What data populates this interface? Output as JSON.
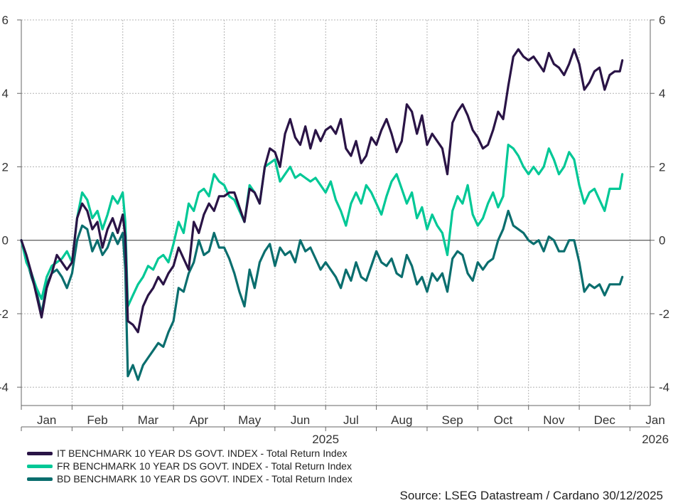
{
  "chart_data": {
    "type": "line",
    "title": "",
    "xlabel": "",
    "ylabel": "",
    "ylim": [
      -4.5,
      6
    ],
    "yticks": [
      -4,
      -2,
      0,
      2,
      4,
      6
    ],
    "ytick_labels": [
      "-4",
      "-2",
      "0",
      "2",
      "4",
      "6"
    ],
    "xlim": [
      0,
      12.4
    ],
    "month_labels": [
      "Jan",
      "Feb",
      "Mar",
      "Apr",
      "May",
      "Jun",
      "Jul",
      "Aug",
      "Sep",
      "Oct",
      "Nov",
      "Dec",
      "Jan"
    ],
    "year_labels": [
      {
        "label": "2025",
        "month": 6
      },
      {
        "label": "2026",
        "month": 12.5
      }
    ],
    "grid": true,
    "zero_line": true,
    "series": [
      {
        "name": "IT BENCHMARK 10 YEAR DS GOVT. INDEX - Total Return Index",
        "color": "#2a1446",
        "x": [
          0,
          0.1,
          0.2,
          0.3,
          0.4,
          0.5,
          0.6,
          0.7,
          0.8,
          0.9,
          1.0,
          1.1,
          1.2,
          1.3,
          1.4,
          1.5,
          1.6,
          1.7,
          1.8,
          1.9,
          2.0,
          2.05,
          2.1,
          2.2,
          2.3,
          2.4,
          2.5,
          2.6,
          2.7,
          2.8,
          2.9,
          3.0,
          3.1,
          3.2,
          3.3,
          3.4,
          3.5,
          3.6,
          3.7,
          3.8,
          3.9,
          4.0,
          4.1,
          4.2,
          4.3,
          4.4,
          4.5,
          4.6,
          4.7,
          4.8,
          4.9,
          5.0,
          5.1,
          5.2,
          5.3,
          5.4,
          5.5,
          5.6,
          5.7,
          5.8,
          5.9,
          6.0,
          6.1,
          6.2,
          6.3,
          6.4,
          6.5,
          6.6,
          6.7,
          6.8,
          6.9,
          7.0,
          7.1,
          7.2,
          7.3,
          7.4,
          7.5,
          7.6,
          7.7,
          7.8,
          7.9,
          8.0,
          8.1,
          8.2,
          8.3,
          8.4,
          8.5,
          8.6,
          8.7,
          8.8,
          8.9,
          9.0,
          9.1,
          9.2,
          9.3,
          9.4,
          9.5,
          9.6,
          9.7,
          9.8,
          9.9,
          10.0,
          10.1,
          10.2,
          10.3,
          10.4,
          10.5,
          10.6,
          10.7,
          10.8,
          10.9,
          11.0,
          11.1,
          11.2,
          11.3,
          11.4,
          11.5,
          11.6,
          11.7,
          11.8,
          11.85
        ],
        "values": [
          0,
          -0.4,
          -0.9,
          -1.5,
          -2.1,
          -1.3,
          -0.9,
          -0.4,
          -0.6,
          -0.8,
          -0.6,
          0.6,
          1.0,
          0.8,
          0.3,
          0.5,
          -0.2,
          0.3,
          0.6,
          0.2,
          0.7,
          0.1,
          -2.2,
          -2.3,
          -2.5,
          -1.8,
          -1.5,
          -1.3,
          -1.0,
          -1.2,
          -0.9,
          -0.7,
          -0.2,
          -0.5,
          -0.8,
          0.5,
          0.2,
          0.7,
          1.0,
          0.8,
          1.2,
          1.2,
          1.3,
          1.3,
          0.9,
          0.5,
          1.4,
          1.3,
          1.0,
          2.0,
          2.5,
          2.4,
          2.0,
          2.9,
          3.3,
          2.8,
          2.6,
          3.1,
          2.5,
          3.0,
          2.7,
          3.0,
          3.1,
          2.9,
          3.3,
          2.5,
          2.3,
          2.7,
          2.1,
          2.3,
          2.8,
          2.6,
          3.0,
          3.3,
          2.9,
          2.4,
          2.7,
          3.7,
          3.5,
          2.9,
          3.4,
          2.6,
          2.9,
          2.7,
          2.5,
          1.8,
          3.2,
          3.5,
          3.7,
          3.4,
          3.0,
          2.8,
          2.5,
          2.6,
          3.0,
          3.5,
          3.3,
          4.2,
          5.0,
          5.2,
          5.0,
          4.9,
          5.0,
          4.8,
          4.6,
          5.1,
          4.8,
          4.7,
          4.5,
          4.8,
          5.2,
          4.8,
          4.1,
          4.3,
          4.6,
          4.7,
          4.1,
          4.5,
          4.6,
          4.6,
          4.9
        ]
      },
      {
        "name": "FR BENCHMARK 10 YEAR DS GOVT. INDEX - Total Return Index",
        "color": "#00c896",
        "x": [
          0,
          0.1,
          0.2,
          0.3,
          0.4,
          0.5,
          0.6,
          0.7,
          0.8,
          0.9,
          1.0,
          1.1,
          1.2,
          1.3,
          1.4,
          1.5,
          1.6,
          1.7,
          1.8,
          1.9,
          2.0,
          2.05,
          2.1,
          2.2,
          2.3,
          2.4,
          2.5,
          2.6,
          2.7,
          2.8,
          2.9,
          3.0,
          3.1,
          3.2,
          3.3,
          3.4,
          3.5,
          3.6,
          3.7,
          3.8,
          3.9,
          4.0,
          4.1,
          4.2,
          4.3,
          4.4,
          4.5,
          4.6,
          4.7,
          4.8,
          4.9,
          5.0,
          5.1,
          5.2,
          5.3,
          5.4,
          5.5,
          5.6,
          5.7,
          5.8,
          5.9,
          6.0,
          6.1,
          6.2,
          6.3,
          6.4,
          6.5,
          6.6,
          6.7,
          6.8,
          6.9,
          7.0,
          7.1,
          7.2,
          7.3,
          7.4,
          7.5,
          7.6,
          7.7,
          7.8,
          7.9,
          8.0,
          8.1,
          8.2,
          8.3,
          8.4,
          8.5,
          8.6,
          8.7,
          8.8,
          8.9,
          9.0,
          9.1,
          9.2,
          9.3,
          9.4,
          9.5,
          9.6,
          9.7,
          9.8,
          9.9,
          10.0,
          10.1,
          10.2,
          10.3,
          10.4,
          10.5,
          10.6,
          10.7,
          10.8,
          10.9,
          11.0,
          11.1,
          11.2,
          11.3,
          11.4,
          11.5,
          11.6,
          11.7,
          11.8,
          11.85
        ],
        "values": [
          0,
          -0.6,
          -0.9,
          -1.3,
          -1.6,
          -1.0,
          -0.7,
          -0.6,
          -0.5,
          -0.3,
          -0.6,
          0.6,
          1.3,
          1.1,
          0.6,
          0.8,
          0.3,
          0.7,
          1.2,
          1.0,
          1.3,
          0.5,
          -1.8,
          -1.5,
          -1.2,
          -1.0,
          -0.7,
          -0.8,
          -0.5,
          -0.4,
          -0.6,
          -0.1,
          0.5,
          0.2,
          1.0,
          0.8,
          1.3,
          1.4,
          1.2,
          1.8,
          1.6,
          1.5,
          1.2,
          1.1,
          0.8,
          0.5,
          1.5,
          1.3,
          1.0,
          2.0,
          2.1,
          2.2,
          1.6,
          1.8,
          2.0,
          1.7,
          1.8,
          1.7,
          1.6,
          1.7,
          1.5,
          1.3,
          1.6,
          1.1,
          0.8,
          0.4,
          1.0,
          1.3,
          1.0,
          1.5,
          1.3,
          1.0,
          0.7,
          1.2,
          1.6,
          1.8,
          1.4,
          1.0,
          1.3,
          0.6,
          0.9,
          0.3,
          0.7,
          0.4,
          0.2,
          -0.4,
          0.8,
          1.2,
          1.0,
          1.5,
          0.7,
          0.4,
          0.6,
          1.0,
          1.3,
          0.9,
          1.2,
          2.6,
          2.5,
          2.3,
          2.0,
          1.8,
          2.0,
          1.8,
          2.0,
          2.5,
          2.2,
          1.8,
          2.0,
          2.4,
          2.2,
          1.5,
          1.0,
          1.3,
          1.4,
          1.1,
          0.8,
          1.4,
          1.4,
          1.4,
          1.8
        ]
      },
      {
        "name": "BD BENCHMARK 10 YEAR DS GOVT. INDEX - Total Return Index",
        "color": "#0a6e6e",
        "x": [
          0,
          0.1,
          0.2,
          0.3,
          0.4,
          0.5,
          0.6,
          0.7,
          0.8,
          0.9,
          1.0,
          1.1,
          1.2,
          1.3,
          1.4,
          1.5,
          1.6,
          1.7,
          1.8,
          1.9,
          2.0,
          2.05,
          2.1,
          2.2,
          2.3,
          2.4,
          2.5,
          2.6,
          2.7,
          2.8,
          2.9,
          3.0,
          3.1,
          3.2,
          3.3,
          3.4,
          3.5,
          3.6,
          3.7,
          3.8,
          3.9,
          4.0,
          4.1,
          4.2,
          4.3,
          4.4,
          4.5,
          4.6,
          4.7,
          4.8,
          4.9,
          5.0,
          5.1,
          5.2,
          5.3,
          5.4,
          5.5,
          5.6,
          5.7,
          5.8,
          5.9,
          6.0,
          6.1,
          6.2,
          6.3,
          6.4,
          6.5,
          6.6,
          6.7,
          6.8,
          6.9,
          7.0,
          7.1,
          7.2,
          7.3,
          7.4,
          7.5,
          7.6,
          7.7,
          7.8,
          7.9,
          8.0,
          8.1,
          8.2,
          8.3,
          8.4,
          8.5,
          8.6,
          8.7,
          8.8,
          8.9,
          9.0,
          9.1,
          9.2,
          9.3,
          9.4,
          9.5,
          9.6,
          9.7,
          9.8,
          9.9,
          10.0,
          10.1,
          10.2,
          10.3,
          10.4,
          10.5,
          10.6,
          10.7,
          10.8,
          10.9,
          11.0,
          11.1,
          11.2,
          11.3,
          11.4,
          11.5,
          11.6,
          11.7,
          11.8,
          11.85
        ],
        "values": [
          0,
          -0.5,
          -1.0,
          -1.4,
          -2.0,
          -1.2,
          -0.9,
          -0.8,
          -1.0,
          -1.3,
          -0.9,
          0.0,
          0.4,
          0.3,
          -0.3,
          0.0,
          -0.4,
          -0.2,
          0.2,
          -0.1,
          0.2,
          -0.8,
          -3.7,
          -3.4,
          -3.8,
          -3.4,
          -3.2,
          -3.0,
          -2.8,
          -2.9,
          -2.5,
          -2.2,
          -1.3,
          -1.4,
          -0.9,
          -0.6,
          0.0,
          -0.4,
          -0.3,
          0.2,
          -0.2,
          -0.2,
          -0.5,
          -0.9,
          -1.4,
          -1.8,
          -0.8,
          -1.3,
          -0.6,
          -0.3,
          -0.1,
          -0.7,
          -0.2,
          -0.4,
          -0.3,
          -0.6,
          0.0,
          -0.3,
          -0.2,
          -0.5,
          -0.8,
          -0.6,
          -0.8,
          -1.0,
          -1.3,
          -0.8,
          -1.1,
          -0.6,
          -1.0,
          -1.1,
          -0.7,
          -0.3,
          -0.6,
          -0.7,
          -0.5,
          -0.9,
          -1.0,
          -0.4,
          -0.7,
          -1.2,
          -1.0,
          -1.4,
          -0.9,
          -1.1,
          -0.9,
          -1.4,
          -0.5,
          -0.3,
          -0.4,
          -0.9,
          -1.1,
          -0.6,
          -0.8,
          -0.6,
          -0.5,
          0.0,
          0.3,
          0.8,
          0.4,
          0.3,
          0.2,
          0.0,
          -0.1,
          0.0,
          -0.3,
          0.1,
          0.0,
          -0.3,
          -0.3,
          0.0,
          0.0,
          -0.6,
          -1.4,
          -1.2,
          -1.3,
          -1.2,
          -1.5,
          -1.2,
          -1.2,
          -1.2,
          -1.0
        ]
      }
    ],
    "source": "Source: LSEG Datastream / Cardano  30/12/2025"
  }
}
